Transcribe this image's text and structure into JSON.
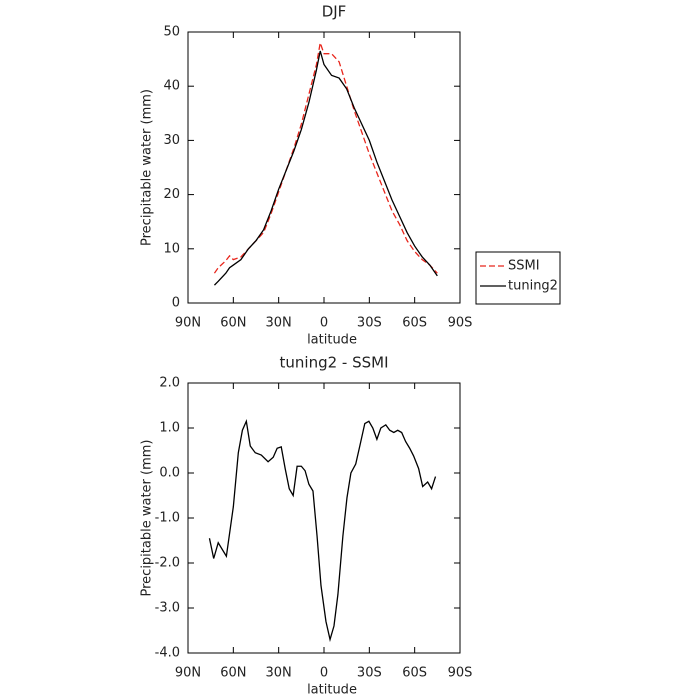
{
  "chart_data": [
    {
      "type": "line",
      "title": "DJF",
      "xlabel": "latitude",
      "ylabel": "Precipitable water (mm)",
      "xlim": [
        90,
        -90
      ],
      "xticks": [
        {
          "value": 90,
          "label": "90N"
        },
        {
          "value": 60,
          "label": "60N"
        },
        {
          "value": 30,
          "label": "30N"
        },
        0,
        {
          "value": -30,
          "label": "30S"
        },
        {
          "value": -60,
          "label": "60S"
        },
        {
          "value": -90,
          "label": "90S"
        }
      ],
      "ylim": [
        0,
        50
      ],
      "yticks": [
        0,
        10,
        20,
        30,
        40,
        50
      ],
      "legend": "right",
      "x": [
        72.5,
        70,
        65,
        62.5,
        60,
        55,
        50,
        45,
        40,
        35,
        30,
        25,
        20,
        15,
        10,
        5,
        2.5,
        0,
        -5,
        -10,
        -15,
        -20,
        -25,
        -30,
        -35,
        -40,
        -45,
        -50,
        -55,
        -60,
        -65,
        -70,
        -75
      ],
      "series": [
        {
          "name": "SSMI",
          "color": "#e8261c",
          "linestyle": "dashed",
          "values": [
            5.5,
            6.5,
            7.8,
            8.7,
            8.0,
            8.5,
            10,
            11.5,
            13,
            16.5,
            20.5,
            24.5,
            28.5,
            33,
            38.5,
            44,
            48,
            46,
            46,
            44.5,
            40,
            35.5,
            31.5,
            27.5,
            24,
            20.5,
            17,
            14.5,
            11.5,
            9.5,
            8,
            7,
            5.5
          ]
        },
        {
          "name": "tuning2",
          "color": "#000000",
          "linestyle": "solid",
          "values": [
            3.3,
            4,
            5.5,
            6.5,
            7,
            8,
            10,
            11.5,
            13.5,
            17,
            21,
            24.5,
            28,
            32,
            37,
            43,
            46.5,
            44,
            42,
            41.5,
            39.5,
            36,
            33,
            30,
            26,
            22.5,
            19,
            16,
            13,
            10.5,
            8.5,
            7,
            5
          ]
        }
      ]
    },
    {
      "type": "line",
      "title": "tuning2 - SSMI",
      "xlabel": "latitude",
      "ylabel": "Precipitable water (mm)",
      "xlim": [
        90,
        -90
      ],
      "xticks": [
        {
          "value": 90,
          "label": "90N"
        },
        {
          "value": 60,
          "label": "60N"
        },
        {
          "value": 30,
          "label": "30N"
        },
        0,
        {
          "value": -30,
          "label": "30S"
        },
        {
          "value": -60,
          "label": "60S"
        },
        {
          "value": -90,
          "label": "90S"
        }
      ],
      "ylim": [
        -4,
        2
      ],
      "yticks": [
        {
          "value": 2,
          "label": "2.0"
        },
        {
          "value": 1,
          "label": "1.0"
        },
        {
          "value": 0,
          "label": "0.0"
        },
        {
          "value": -1,
          "label": "-1.0"
        },
        {
          "value": -2,
          "label": "-2.0"
        },
        {
          "value": -3,
          "label": "-3.0"
        },
        {
          "value": -4,
          "label": "-4.0"
        }
      ],
      "color": "#000000",
      "x": [
        75.8,
        73,
        70,
        64.6,
        60,
        56.7,
        54,
        51.4,
        48.8,
        45.5,
        41.5,
        37,
        33.6,
        31,
        28.3,
        25.7,
        23,
        20.4,
        17.8,
        15,
        12.5,
        10,
        7.3,
        4.6,
        2,
        -1.3,
        -4,
        -6.6,
        -9.2,
        -12.5,
        -15.2,
        -17.8,
        -21,
        -23.7,
        -27,
        -29.7,
        -32.3,
        -35,
        -37.6,
        -40.9,
        -43.5,
        -46.2,
        -48.8,
        -51.4,
        -54,
        -56.7,
        -59.3,
        -62.6,
        -65.3,
        -68.6,
        -71.2,
        -73.8
      ],
      "values": [
        -1.45,
        -1.9,
        -1.55,
        -1.85,
        -0.75,
        0.45,
        0.95,
        1.15,
        0.6,
        0.45,
        0.4,
        0.25,
        0.35,
        0.55,
        0.58,
        0.1,
        -0.35,
        -0.5,
        0.15,
        0.15,
        0.05,
        -0.25,
        -0.4,
        -1.4,
        -2.5,
        -3.3,
        -3.7,
        -3.4,
        -2.7,
        -1.4,
        -0.55,
        0,
        0.2,
        0.6,
        1.1,
        1.15,
        1.0,
        0.75,
        1.0,
        1.07,
        0.95,
        0.9,
        0.95,
        0.9,
        0.7,
        0.55,
        0.38,
        0.1,
        -0.3,
        -0.2,
        -0.35,
        -0.08
      ]
    }
  ]
}
